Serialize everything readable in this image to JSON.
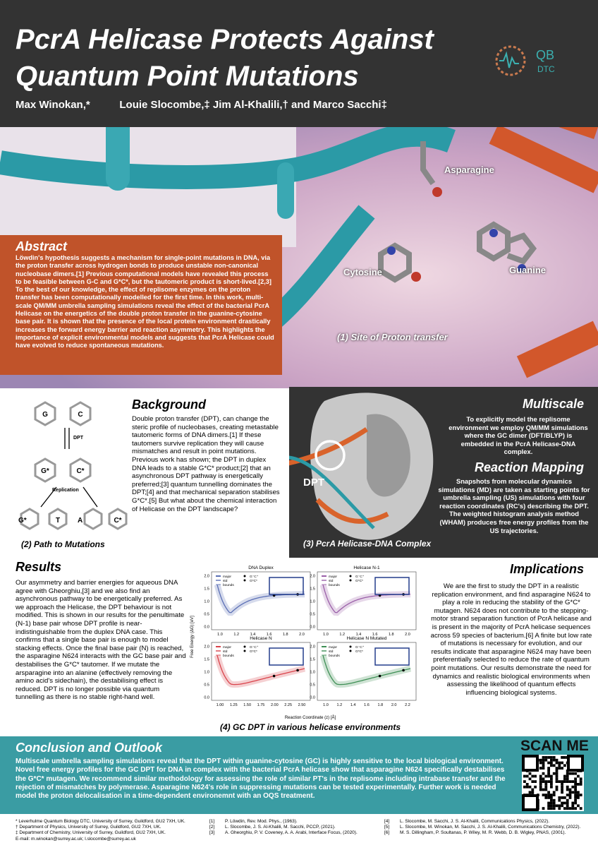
{
  "header": {
    "title_lines": [
      "PcrA Helicase Protects Against",
      "Quantum Point Mutations"
    ],
    "authors": "Max Winokan,*          Louie Slocombe,‡ Jim Al-Khalili,† and Marco Sacchi‡"
  },
  "logo": {
    "top": "QB",
    "bottom": "DTC"
  },
  "figure1": {
    "labels": [
      "Asparagine",
      "Cytosine",
      "Guanine"
    ],
    "caption": "(1) Site of Proton transfer"
  },
  "abstract": {
    "heading": "Abstract",
    "text": "Löwdin's hypothesis suggests a mechanism for single-point mutations in DNA, via the proton transfer across hydrogen bonds to produce unstable non-canonical nucleobase dimers.[1] Previous computational models have revealed this process to be feasible between G-C and G*C*, but the tautomeric product is short-lived.[2,3] To the best of our knowledge, the effect of replisome enzymes on the proton transfer has been computationally modelled for the first time. In this work, multi-scale QM/MM umbrella sampling simulations reveal the effect of the bacterial PcrA Helicase on the energetics of the double proton transfer in the guanine-cytosine base pair. It is shown that the presence of the local protein environment drastically increases the forward energy barrier and reaction asymmetry. This highlights the importance of explicit environmental models and suggests that PcrA Helicase could have evolved to reduce spontaneous mutations."
  },
  "figure2": {
    "top": [
      "G",
      "C"
    ],
    "arrow": "DPT",
    "middle": [
      "G*",
      "C*"
    ],
    "replication": "Replication",
    "bottom": [
      "G*",
      "T",
      "A",
      "C*"
    ],
    "caption": "(2) Path to Mutations"
  },
  "background": {
    "heading": "Background",
    "text": "Double proton transfer (DPT), can change the steric profile of nucleobases, creating metastable tautomeric forms of DNA dimers.[1] If these tautomers survive replication they will cause mismatches and result in point mutations. Previous work has shown; the DPT in duplex DNA leads to a stable G*C* product;[2] that an asynchronous DPT pathway is energetically preferred;[3] quantum tunnelling dominates the DPT;[4] and that mechanical separation stabilises G*C*.[5] But what about the chemical interaction of Helicase on the DPT landscape?"
  },
  "multiscale": {
    "heading": "Multiscale",
    "text": "To explicitly model the replisome environment we employ QM/MM simulations where the GC dimer (DFT/BLYP) is embedded in the PcrA Helicase-DNA complex."
  },
  "reaction_mapping": {
    "heading": "Reaction Mapping",
    "text": "Snapshots from molecular dynamics simulations (MD) are taken as starting points for umbrella sampling (US) simulations with four reaction coordinates (RC's) describing the DPT. The weighted histogram analysis method (WHAM) produces free energy profiles from the US trajectories."
  },
  "figure3": {
    "label": "DPT",
    "caption": "(3) PcrA Helicase-DNA Complex"
  },
  "results": {
    "heading": "Results",
    "text": "Our asymmetry and barrier energies for aqueous DNA agree with Gheorghiu,[3] and we also find an asynchronous pathway to be energetically preferred. As we approach the Helicase, the DPT behaviour is not modified. This is shown in our results for the penultimate (N-1) base pair whose DPT profile is near-indistinguishable from the duplex DNA case. This confirms that a single base pair is enough to model stacking effects. Once the final base pair (N) is reached, the asparagine N624 interacts with the GC base pair and destabilises the G*C* tautomer. If we mutate the arsparagine into an alanine (effectively removing the amino acid's sidechain), the destabilising effect is reduced. DPT is no longer possible via quantum tunnelling as there is no stable right-hand well."
  },
  "figure4": {
    "ylabel": "Free Energy (ΔG) [eV]",
    "xlabel": "Reaction Coordinate (z) [Å]",
    "legend": [
      "major",
      "std",
      "bounds",
      "G⁻C⁺",
      "G*C*"
    ],
    "yticks": [
      "2.0",
      "1.5",
      "1.0",
      "0.5",
      "0.0"
    ],
    "plots": [
      {
        "title": "DNA Duplex",
        "xticks": [
          "1.0",
          "1.2",
          "1.4",
          "1.6",
          "1.8",
          "2.0"
        ]
      },
      {
        "title": "Helicase N-1",
        "xticks": [
          "1.0",
          "1.2",
          "1.4",
          "1.6",
          "1.8",
          "2.0"
        ]
      },
      {
        "title": "Helicase N",
        "xticks": [
          "1.00",
          "1.25",
          "1.50",
          "1.75",
          "2.00",
          "2.25",
          "2.50"
        ]
      },
      {
        "title": "Helicase N Mutated",
        "xticks": [
          "1.0",
          "1.2",
          "1.4",
          "1.6",
          "1.8",
          "2.0",
          "2.2"
        ]
      }
    ],
    "caption": "(4) GC DPT in various helicase environments"
  },
  "implications": {
    "heading": "Implications",
    "text": "We are the first to study the DPT in a realistic replication environment, and find asparagine N624 to play a role in reducing the stability of the G*C* mutagen. N624 does not contribute to the stepping-motor strand separation function of PcrA helicase and is present in the majority of PcrA helicase sequences across 59 species of bacterium.[6] A finite but low rate of mutations is necessary for evolution, and our results indicate that asparagine N624 may have been preferentially selected to reduce the rate of quantum point mutations. Our results demonstrate the need for dynamics and realistic biological environments when assessing the likelihood of quantum effects influencing biological systems."
  },
  "conclusion": {
    "heading": "Conclusion and Outlook",
    "text": "Multiscale umbrella sampling simulations reveal that the DPT within guanine-cytosine (GC) is highly sensitive to the local biological environment. Novel free energy profiles for the GC DPT for DNA in complex with the bacterial PcrA helicase show that asparagine N624 specifically destabilises the G*C* mutagen. We recommend similar methodology for assessing the role of similar PT's in the replisome including intrabase transfer and the rejection of mismatches by polymerase. Asparagine N624's role in suppressing mutations can be tested experimentally. Further work is needed model the proton delocalisation in a time-dependent environemnt with an OQS treatment."
  },
  "scan_me": "SCAN ME",
  "footer": {
    "affiliations": [
      "* Leverhulme Quantum Biology DTC, University of Surrey, Guildford, GU2 7XH, UK.",
      "† Department of Physics, University of Surrey, Guildford, GU2 7XH, UK.",
      "‡ Department of Chemistry, University of Surrey, Guildford, GU2 7XH, UK.",
      "E-mail: m.winokan@surrey.ac.uk; l.slocombe@surrey.ac.uk"
    ],
    "references": [
      {
        "num": "[1]",
        "text": "P. Löwdin, Rev. Mod. Phys., (1963)."
      },
      {
        "num": "[2]",
        "text": "L. Slocombe, J. S. Al-Khalili, M. Sacchi, PCCP, (2021)."
      },
      {
        "num": "[3]",
        "text": "A. Gheorghiu, P. V. Coveney, A. A. Arabi, Interface Focus, (2020)."
      },
      {
        "num": "[4]",
        "text": "L. Slocombe, M. Sacchi, J. S. Al-Khalili, Communications Physics, (2022)."
      },
      {
        "num": "[5]",
        "text": "L. Slocombe, M. Winokan, M. Sacchi, J. S. Al-Khalili, Communications Chemistry, (2022)."
      },
      {
        "num": "[6]",
        "text": "M. S. Dillingham, P. Soultanas, P. Wiley, M. R. Webb, D. B. Wigley, PNAS, (2001)."
      }
    ]
  }
}
